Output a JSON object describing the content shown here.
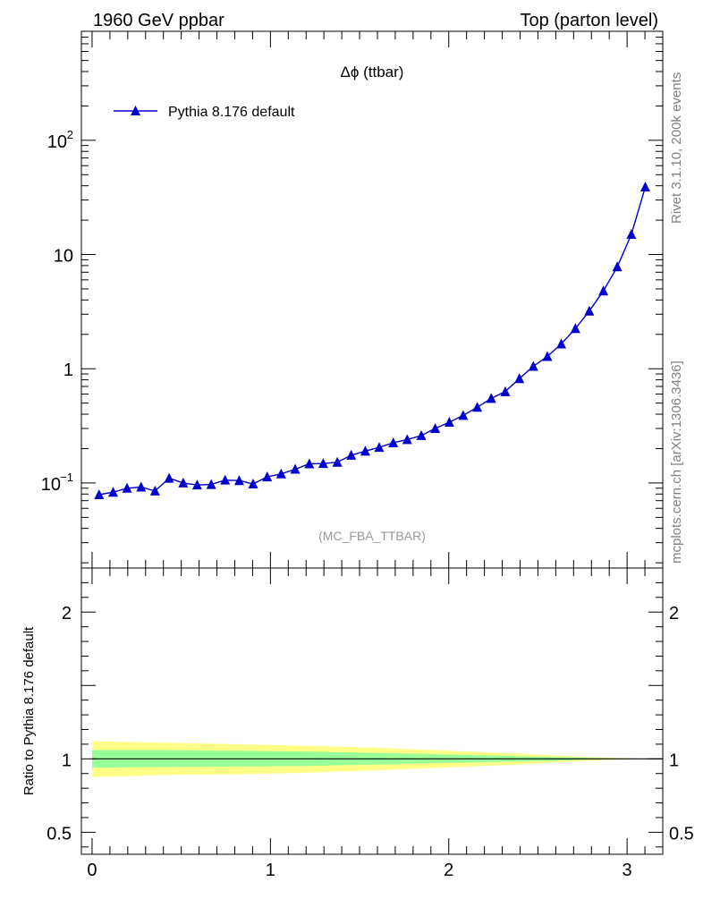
{
  "header": {
    "left": "1960 GeV ppbar",
    "right": "Top (parton level)"
  },
  "side_labels": {
    "version": "Rivet 3.1.10,  200k events",
    "source": "mcplots.cern.ch [arXiv:1306.3436]"
  },
  "chart_data": [
    {
      "type": "line",
      "title": "Δϕ (ttbar)",
      "analysis": "(MC_FBA_TTBAR)",
      "yscale": "log",
      "xlim": [
        -0.06,
        3.2
      ],
      "ylim": [
        0.018,
        900
      ],
      "yticks": [
        {
          "value": 0.1,
          "label": "10",
          "exp": "−1"
        },
        {
          "value": 1,
          "label": "1",
          "exp": ""
        },
        {
          "value": 10,
          "label": "10",
          "exp": ""
        },
        {
          "value": 100,
          "label": "10",
          "exp": "2"
        }
      ],
      "legend": {
        "position": "top-left",
        "entries": [
          "Pythia 8.176 default"
        ]
      },
      "series": [
        {
          "name": "Pythia 8.176 default",
          "color": "#0000cc",
          "marker": "triangle",
          "x": [
            0.039,
            0.118,
            0.196,
            0.275,
            0.353,
            0.432,
            0.511,
            0.589,
            0.668,
            0.746,
            0.825,
            0.903,
            0.982,
            1.06,
            1.139,
            1.218,
            1.296,
            1.375,
            1.453,
            1.532,
            1.61,
            1.689,
            1.767,
            1.846,
            1.924,
            2.003,
            2.081,
            2.16,
            2.238,
            2.317,
            2.396,
            2.474,
            2.553,
            2.631,
            2.71,
            2.788,
            2.867,
            2.945,
            3.024,
            3.102
          ],
          "y": [
            0.079,
            0.083,
            0.09,
            0.092,
            0.085,
            0.11,
            0.1,
            0.096,
            0.097,
            0.106,
            0.105,
            0.098,
            0.113,
            0.12,
            0.132,
            0.147,
            0.148,
            0.152,
            0.175,
            0.19,
            0.205,
            0.225,
            0.24,
            0.26,
            0.3,
            0.34,
            0.39,
            0.46,
            0.55,
            0.63,
            0.82,
            1.05,
            1.28,
            1.65,
            2.25,
            3.2,
            4.8,
            7.8,
            15,
            39
          ]
        }
      ]
    },
    {
      "type": "area",
      "ylabel": "Ratio to Pythia 8.176 default",
      "xlim": [
        -0.06,
        3.2
      ],
      "ylim": [
        0.35,
        2.3
      ],
      "xticks": [
        0,
        1,
        2,
        3
      ],
      "yticks": [
        0.5,
        1,
        2
      ],
      "reference": 1,
      "bands": [
        {
          "name": "outer",
          "color": "#ffff88",
          "x": [
            0,
            0.4,
            0.8,
            1.2,
            1.6,
            2.0,
            2.4,
            2.8,
            3.1
          ],
          "upper": [
            1.12,
            1.11,
            1.1,
            1.09,
            1.075,
            1.055,
            1.035,
            1.012,
            1.0
          ],
          "lower": [
            0.875,
            0.89,
            0.895,
            0.905,
            0.922,
            0.942,
            0.962,
            0.988,
            1.0
          ]
        },
        {
          "name": "inner",
          "color": "#99ff99",
          "x": [
            0,
            0.4,
            0.8,
            1.2,
            1.6,
            2.0,
            2.4,
            2.8,
            3.1
          ],
          "upper": [
            1.06,
            1.06,
            1.055,
            1.05,
            1.04,
            1.03,
            1.018,
            1.006,
            1.0
          ],
          "lower": [
            0.94,
            0.945,
            0.948,
            0.952,
            0.962,
            0.972,
            0.983,
            0.994,
            1.0
          ]
        }
      ]
    }
  ]
}
